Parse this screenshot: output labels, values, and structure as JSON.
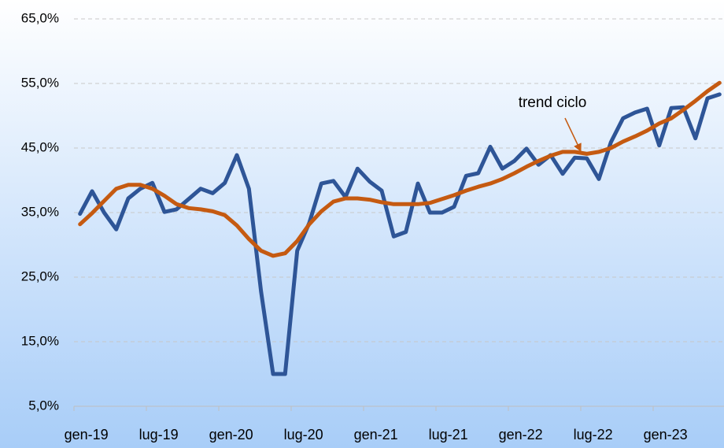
{
  "chart_data": {
    "type": "line",
    "categories": [
      "gen-19",
      null,
      null,
      null,
      null,
      null,
      "lug-19",
      null,
      null,
      null,
      null,
      null,
      "gen-20",
      null,
      null,
      null,
      null,
      null,
      "lug-20",
      null,
      null,
      null,
      null,
      null,
      "gen-21",
      null,
      null,
      null,
      null,
      null,
      "lug-21",
      null,
      null,
      null,
      null,
      null,
      "gen-22",
      null,
      null,
      null,
      null,
      null,
      "lug-22",
      null,
      null,
      null,
      null,
      null,
      "gen-23",
      null,
      null,
      null,
      null,
      null
    ],
    "series": [
      {
        "color": "#2e5597",
        "values": [
          34.8,
          38.3,
          35.0,
          32.4,
          37.2,
          38.7,
          39.6,
          35.1,
          35.5,
          37.1,
          38.7,
          38.0,
          39.6,
          43.9,
          38.7,
          22.8,
          10.0,
          10.0,
          29.1,
          33.4,
          39.5,
          39.9,
          37.4,
          41.8,
          39.8,
          38.4,
          31.3,
          32.0,
          39.5,
          35.0,
          35.0,
          35.9,
          40.7,
          41.1,
          45.2,
          41.8,
          43.0,
          44.9,
          42.4,
          43.9,
          41.0,
          43.5,
          43.4,
          40.2,
          45.9,
          49.6,
          50.5,
          51.1,
          45.4,
          51.2,
          51.3,
          46.5,
          52.7,
          53.3
        ]
      },
      {
        "color": "#c55a11",
        "values": [
          33.2,
          34.9,
          36.8,
          38.7,
          39.3,
          39.3,
          38.7,
          37.6,
          36.3,
          35.7,
          35.5,
          35.2,
          34.6,
          33.0,
          30.9,
          29.1,
          28.3,
          28.7,
          30.6,
          33.2,
          35.2,
          36.7,
          37.2,
          37.2,
          37.0,
          36.6,
          36.3,
          36.3,
          36.3,
          36.5,
          37.1,
          37.7,
          38.4,
          39.0,
          39.5,
          40.2,
          41.1,
          42.1,
          43.0,
          43.8,
          44.4,
          44.4,
          44.1,
          44.4,
          45.0,
          46.0,
          46.8,
          47.7,
          48.8,
          49.6,
          50.9,
          52.3,
          53.8,
          55.1
        ]
      }
    ],
    "annotation": "trend ciclo",
    "ylim": [
      5,
      65
    ],
    "yticks": [
      {
        "value": 5,
        "label": "5,0%"
      },
      {
        "value": 15,
        "label": "15,0%"
      },
      {
        "value": 25,
        "label": "25,0%"
      },
      {
        "value": 35,
        "label": "35,0%"
      },
      {
        "value": 45,
        "label": "45,0%"
      },
      {
        "value": 55,
        "label": "55,0%"
      },
      {
        "value": 65,
        "label": "65,0%"
      }
    ],
    "grid": true
  }
}
